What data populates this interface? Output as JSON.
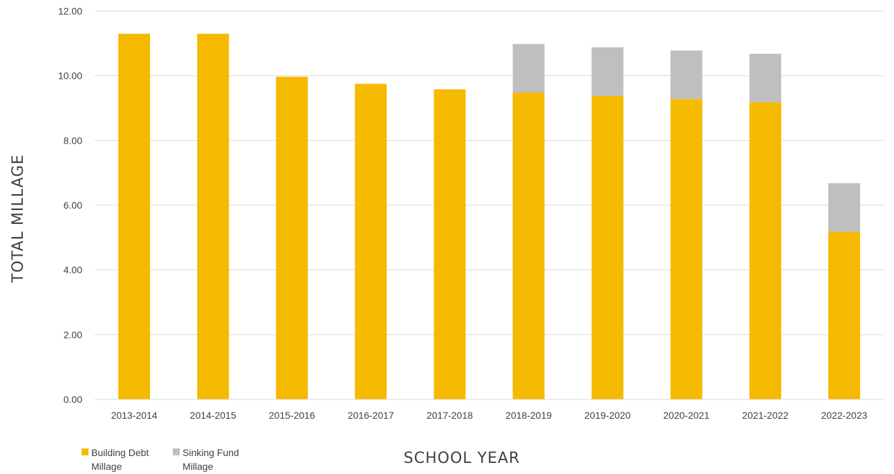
{
  "chart_data": {
    "type": "bar",
    "stacked": true,
    "title": "",
    "xlabel": "SCHOOL YEAR",
    "ylabel": "TOTAL MILLAGE",
    "ylim": [
      0,
      12
    ],
    "ytick_step": 2,
    "ytick_labels": [
      "0.00",
      "2.00",
      "4.00",
      "6.00",
      "8.00",
      "10.00",
      "12.00"
    ],
    "grid": true,
    "legend_position": "bottom-left",
    "categories": [
      "2013-2014",
      "2014-2015",
      "2015-2016",
      "2016-2017",
      "2017-2018",
      "2018-2019",
      "2019-2020",
      "2020-2021",
      "2021-2022",
      "2022-2023"
    ],
    "series": [
      {
        "name": "Building Debt Millage",
        "color": "#F5BA00",
        "values": [
          11.3,
          11.3,
          9.97,
          9.75,
          9.58,
          9.48,
          9.38,
          9.28,
          9.18,
          5.18
        ]
      },
      {
        "name": "Sinking Fund Millage",
        "color": "#BFBFBF",
        "values": [
          0,
          0,
          0,
          0,
          0,
          1.5,
          1.5,
          1.5,
          1.5,
          1.5
        ]
      }
    ]
  }
}
